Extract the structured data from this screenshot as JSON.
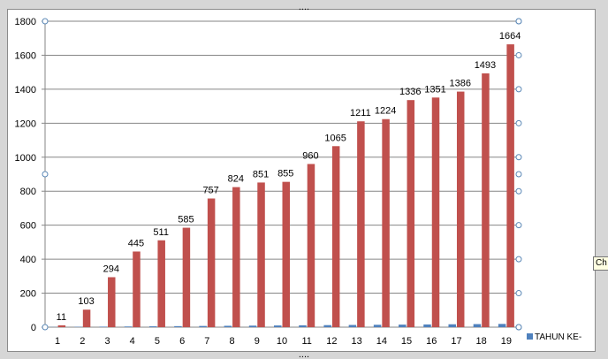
{
  "chart_data": {
    "type": "bar",
    "categories": [
      "1",
      "2",
      "3",
      "4",
      "5",
      "6",
      "7",
      "8",
      "9",
      "10",
      "11",
      "12",
      "13",
      "14",
      "15",
      "16",
      "17",
      "18",
      "19"
    ],
    "series": [
      {
        "name": "TAHUN KE-",
        "color": "#4f81bd",
        "values": [
          1,
          2,
          3,
          4,
          5,
          6,
          7,
          8,
          9,
          10,
          11,
          12,
          13,
          14,
          15,
          16,
          17,
          18,
          19
        ]
      },
      {
        "color": "#c0504d",
        "values": [
          11,
          103,
          294,
          445,
          511,
          585,
          757,
          824,
          851,
          855,
          960,
          1065,
          1211,
          1224,
          1336,
          1351,
          1386,
          1493,
          1664
        ]
      }
    ],
    "ylim": [
      0,
      1800
    ],
    "yticks": [
      0,
      200,
      400,
      600,
      800,
      1000,
      1200,
      1400,
      1600,
      1800
    ],
    "grid": true,
    "legend_position": "bottom-right",
    "data_labels_series": 1
  },
  "tooltip": {
    "text": "Ch"
  }
}
